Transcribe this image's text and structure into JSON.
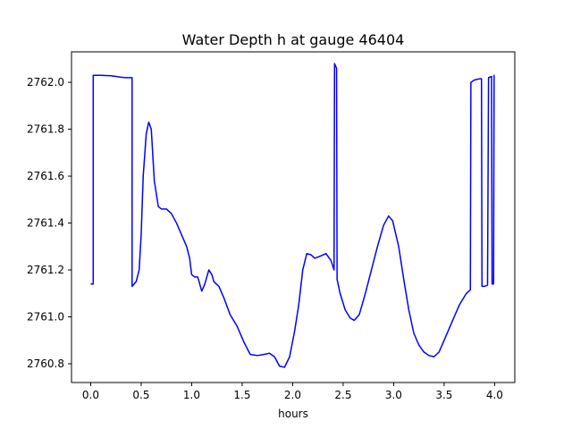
{
  "chart_data": {
    "type": "line",
    "title": "Water Depth h at gauge 46404",
    "xlabel": "hours",
    "ylabel": "",
    "xlim": [
      -0.19,
      4.2
    ],
    "ylim": [
      2760.72,
      2762.13
    ],
    "xticks": [
      0.0,
      0.5,
      1.0,
      1.5,
      2.0,
      2.5,
      3.0,
      3.5,
      4.0
    ],
    "xtick_labels": [
      "0.0",
      "0.5",
      "1.0",
      "1.5",
      "2.0",
      "2.5",
      "3.0",
      "3.5",
      "4.0"
    ],
    "yticks": [
      2760.8,
      2761.0,
      2761.2,
      2761.4,
      2761.6,
      2761.8,
      2762.0
    ],
    "ytick_labels": [
      "2760.8",
      "2761.0",
      "2761.2",
      "2761.4",
      "2761.6",
      "2761.8",
      "2762.0"
    ],
    "grid": false,
    "series": [
      {
        "name": "",
        "color": "#0000ff",
        "points": [
          [
            0.0,
            2761.14
          ],
          [
            0.025,
            2761.14
          ],
          [
            0.025,
            2762.03
          ],
          [
            0.1,
            2762.03
          ],
          [
            0.2,
            2762.028
          ],
          [
            0.3,
            2762.022
          ],
          [
            0.35,
            2762.02
          ],
          [
            0.41,
            2762.02
          ],
          [
            0.41,
            2761.13
          ],
          [
            0.45,
            2761.15
          ],
          [
            0.48,
            2761.2
          ],
          [
            0.5,
            2761.35
          ],
          [
            0.52,
            2761.6
          ],
          [
            0.55,
            2761.78
          ],
          [
            0.575,
            2761.83
          ],
          [
            0.6,
            2761.8
          ],
          [
            0.63,
            2761.58
          ],
          [
            0.67,
            2761.47
          ],
          [
            0.7,
            2761.46
          ],
          [
            0.75,
            2761.46
          ],
          [
            0.8,
            2761.44
          ],
          [
            0.85,
            2761.4
          ],
          [
            0.9,
            2761.35
          ],
          [
            0.95,
            2761.3
          ],
          [
            0.98,
            2761.25
          ],
          [
            1.0,
            2761.18
          ],
          [
            1.03,
            2761.17
          ],
          [
            1.06,
            2761.17
          ],
          [
            1.1,
            2761.11
          ],
          [
            1.13,
            2761.14
          ],
          [
            1.17,
            2761.2
          ],
          [
            1.2,
            2761.18
          ],
          [
            1.22,
            2761.15
          ],
          [
            1.27,
            2761.13
          ],
          [
            1.32,
            2761.08
          ],
          [
            1.38,
            2761.01
          ],
          [
            1.45,
            2760.96
          ],
          [
            1.52,
            2760.89
          ],
          [
            1.58,
            2760.84
          ],
          [
            1.65,
            2760.835
          ],
          [
            1.72,
            2760.84
          ],
          [
            1.77,
            2760.845
          ],
          [
            1.82,
            2760.83
          ],
          [
            1.87,
            2760.79
          ],
          [
            1.92,
            2760.785
          ],
          [
            1.97,
            2760.83
          ],
          [
            2.02,
            2760.94
          ],
          [
            2.06,
            2761.05
          ],
          [
            2.1,
            2761.2
          ],
          [
            2.14,
            2761.27
          ],
          [
            2.18,
            2761.265
          ],
          [
            2.22,
            2761.25
          ],
          [
            2.28,
            2761.26
          ],
          [
            2.33,
            2761.27
          ],
          [
            2.38,
            2761.24
          ],
          [
            2.41,
            2761.2
          ],
          [
            2.415,
            2762.08
          ],
          [
            2.435,
            2762.06
          ],
          [
            2.44,
            2761.16
          ],
          [
            2.47,
            2761.1
          ],
          [
            2.52,
            2761.03
          ],
          [
            2.57,
            2760.995
          ],
          [
            2.61,
            2760.985
          ],
          [
            2.66,
            2761.01
          ],
          [
            2.72,
            2761.1
          ],
          [
            2.78,
            2761.2
          ],
          [
            2.84,
            2761.3
          ],
          [
            2.9,
            2761.39
          ],
          [
            2.95,
            2761.43
          ],
          [
            2.99,
            2761.41
          ],
          [
            3.05,
            2761.3
          ],
          [
            3.1,
            2761.16
          ],
          [
            3.15,
            2761.03
          ],
          [
            3.2,
            2760.93
          ],
          [
            3.25,
            2760.88
          ],
          [
            3.3,
            2760.85
          ],
          [
            3.35,
            2760.835
          ],
          [
            3.4,
            2760.83
          ],
          [
            3.45,
            2760.85
          ],
          [
            3.5,
            2760.9
          ],
          [
            3.58,
            2760.98
          ],
          [
            3.65,
            2761.05
          ],
          [
            3.72,
            2761.1
          ],
          [
            3.76,
            2761.115
          ],
          [
            3.765,
            2762.0
          ],
          [
            3.8,
            2762.01
          ],
          [
            3.85,
            2762.015
          ],
          [
            3.87,
            2762.015
          ],
          [
            3.875,
            2761.13
          ],
          [
            3.9,
            2761.13
          ],
          [
            3.93,
            2761.135
          ],
          [
            3.94,
            2762.02
          ],
          [
            3.97,
            2762.025
          ],
          [
            3.975,
            2761.14
          ],
          [
            3.99,
            2761.14
          ],
          [
            3.995,
            2762.03
          ],
          [
            4.0,
            2762.03
          ]
        ]
      }
    ]
  }
}
